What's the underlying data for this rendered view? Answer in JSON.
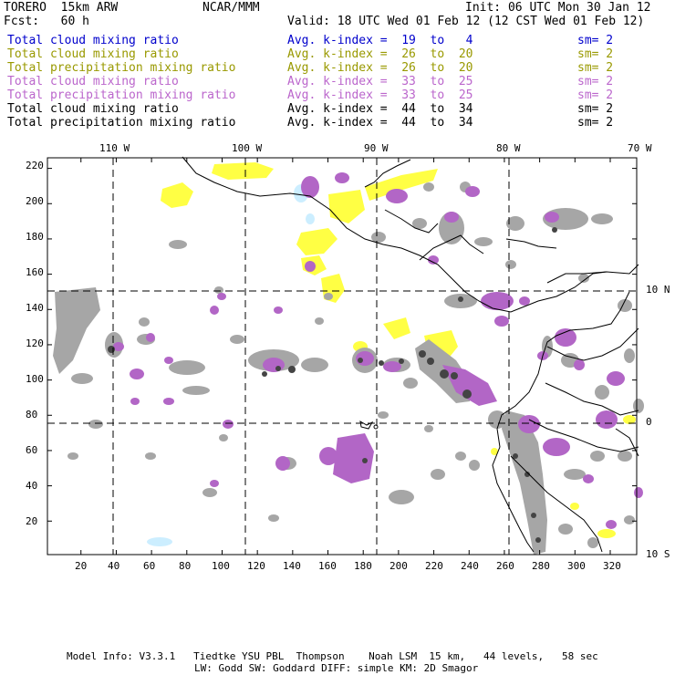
{
  "header": {
    "model": "TORERO  15km ARW",
    "org": "NCAR/MMM",
    "init": "Init: 06 UTC Mon 30 Jan 12",
    "fcst": "Fcst:   60 h",
    "valid": "Valid: 18 UTC Wed 01 Feb 12 (12 CST Wed 01 Feb 12)"
  },
  "legend": [
    {
      "field": "Total cloud mixing ratio",
      "avg": "Avg. k-index =  19  to   4",
      "sm": "sm= 2",
      "color": "#0000cc"
    },
    {
      "field": "Total cloud mixing ratio",
      "avg": "Avg. k-index =  26  to  20",
      "sm": "sm= 2",
      "color": "#999900"
    },
    {
      "field": "Total precipitation mixing ratio",
      "avg": "Avg. k-index =  26  to  20",
      "sm": "sm= 2",
      "color": "#999900"
    },
    {
      "field": "Total cloud mixing ratio",
      "avg": "Avg. k-index =  33  to  25",
      "sm": "sm= 2",
      "color": "#bb66cc"
    },
    {
      "field": "Total precipitation mixing ratio",
      "avg": "Avg. k-index =  33  to  25",
      "sm": "sm= 2",
      "color": "#bb66cc"
    },
    {
      "field": "Total cloud mixing ratio",
      "avg": "Avg. k-index =  44  to  34",
      "sm": "sm= 2",
      "color": "#000000"
    },
    {
      "field": "Total precipitation mixing ratio",
      "avg": "Avg. k-index =  44  to  34",
      "sm": "sm= 2",
      "color": "#000000"
    }
  ],
  "map": {
    "x_ticks": [
      "20",
      "40",
      "60",
      "80",
      "100",
      "120",
      "140",
      "160",
      "180",
      "200",
      "220",
      "240",
      "260",
      "280",
      "300",
      "320"
    ],
    "x_tick_values": [
      20,
      40,
      60,
      80,
      100,
      120,
      140,
      160,
      180,
      200,
      220,
      240,
      260,
      280,
      300,
      320
    ],
    "y_ticks": [
      "20",
      "40",
      "60",
      "80",
      "100",
      "120",
      "140",
      "160",
      "180",
      "200",
      "220"
    ],
    "y_tick_values": [
      20,
      40,
      60,
      80,
      100,
      120,
      140,
      160,
      180,
      200,
      220
    ],
    "grid_i_range": [
      1,
      335
    ],
    "grid_j_range": [
      1,
      226
    ],
    "lon_labels": [
      "110 W",
      "100 W",
      "90 W",
      "80 W",
      "70 W"
    ],
    "lon_values": [
      -110,
      -100,
      -90,
      -80,
      -70
    ],
    "lat_labels": [
      "10 N",
      "0",
      "10 S"
    ],
    "lat_values": [
      10,
      0,
      -10
    ],
    "colors": {
      "gray": "#a6a6a6",
      "dark": "#444444",
      "purple": "#b266c6",
      "yellow": "#ffff44",
      "lightblue": "#cceeff"
    }
  },
  "footer": {
    "line1": "Model Info: V3.3.1   Tiedtke YSU PBL  Thompson    Noah LSM  15 km,   44 levels,   58 sec",
    "line2": "LW: Godd SW: Goddard DIFF: simple KM: 2D Smagor"
  }
}
